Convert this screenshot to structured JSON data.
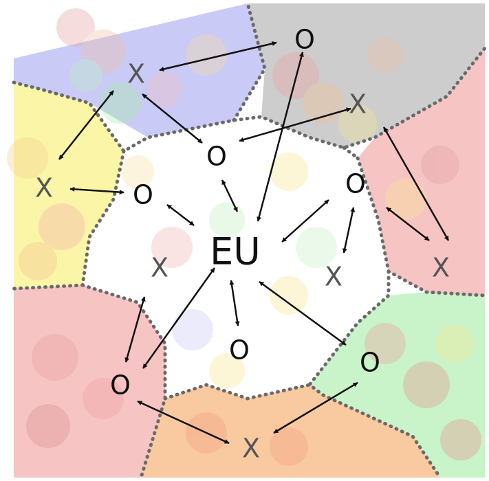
{
  "colors": {
    "background": "#ffffff",
    "border_dots": "#6a6a6a",
    "arrow": "#111111",
    "region_blue": "#c9caf5",
    "region_gray": "#cdcdcd",
    "region_red": "#f7c4c4",
    "region_yellow": "#fbf5a8",
    "region_green": "#c9f3c9",
    "region_orange": "#f9c9a0",
    "center_white": "#ffffff",
    "x_label_color": "#555555",
    "o_label_color": "#111111",
    "center_label_color": "#111111"
  },
  "nodes": {
    "center": "EU",
    "x": "X",
    "o": "O"
  }
}
